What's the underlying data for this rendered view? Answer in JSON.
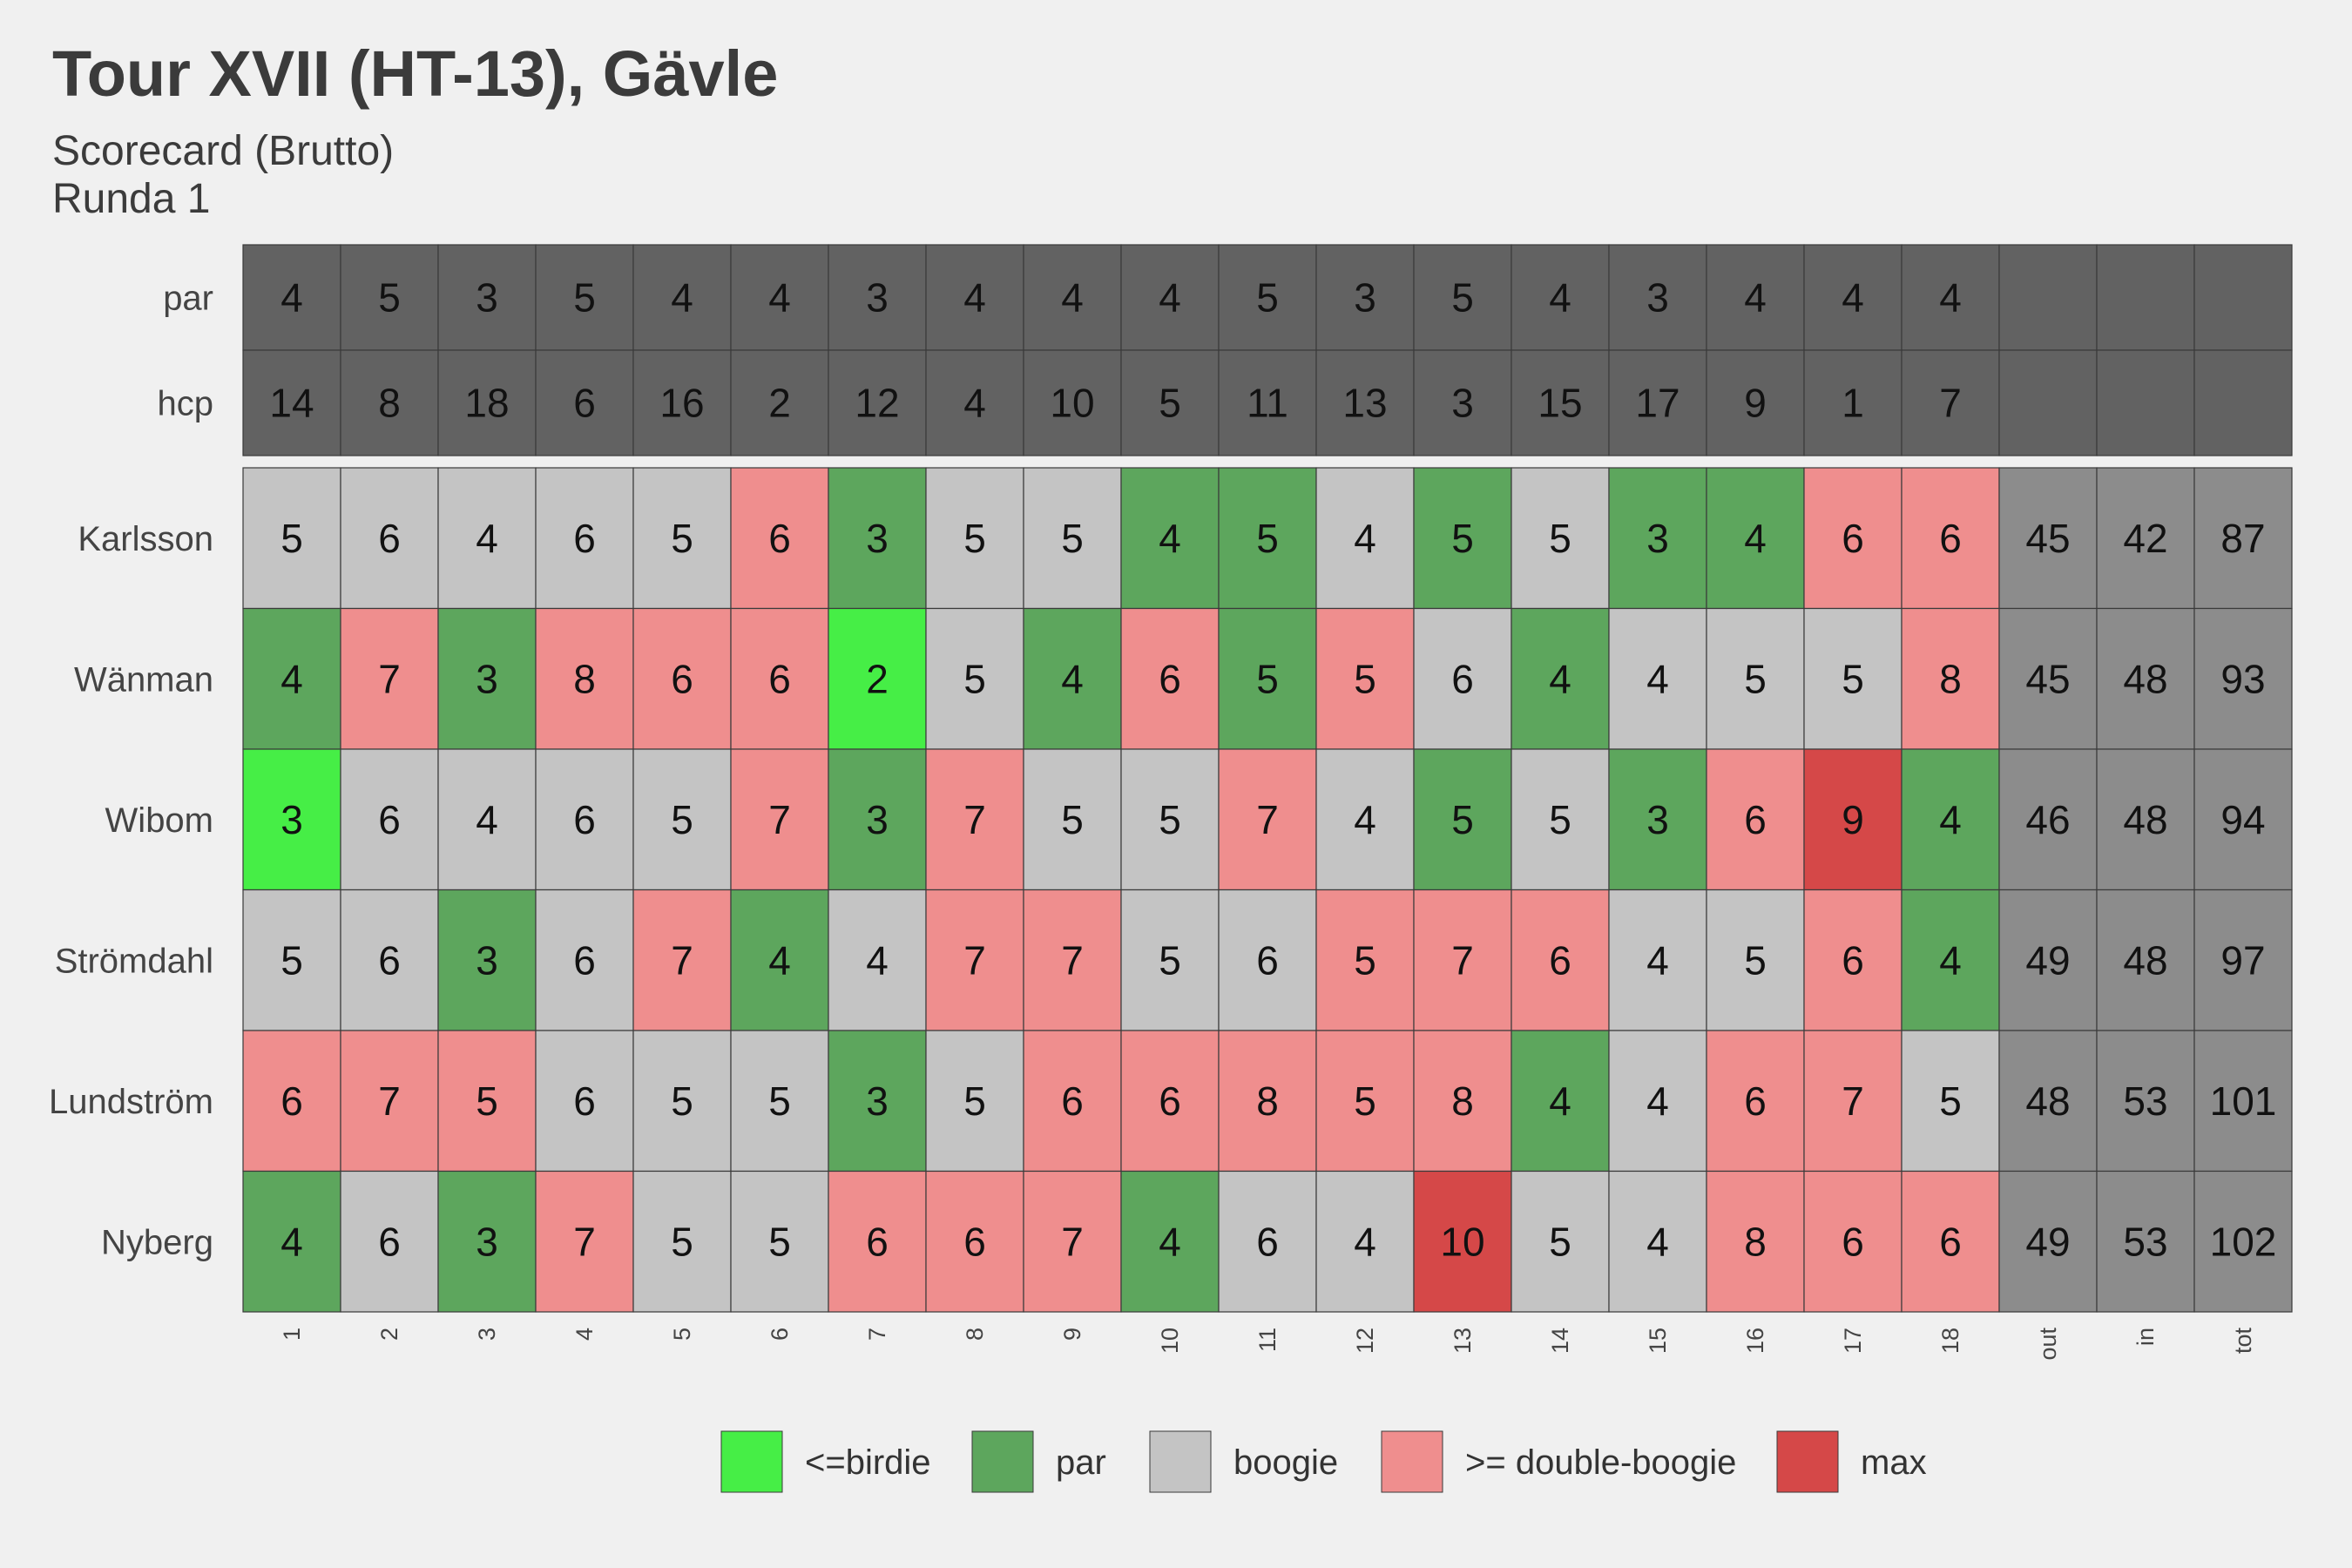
{
  "title": "Tour XVII (HT-13), Gävle",
  "subtitle": "Scorecard (Brutto)",
  "subtitle2": "Runda 1",
  "chart_data": {
    "type": "heatmap",
    "columns": [
      "1",
      "2",
      "3",
      "4",
      "5",
      "6",
      "7",
      "8",
      "9",
      "10",
      "11",
      "12",
      "13",
      "14",
      "15",
      "16",
      "17",
      "18",
      "out",
      "in",
      "tot"
    ],
    "header_rows": [
      {
        "label": "par",
        "values": [
          4,
          5,
          3,
          5,
          4,
          4,
          3,
          4,
          4,
          4,
          5,
          3,
          5,
          4,
          3,
          4,
          4,
          4
        ]
      },
      {
        "label": "hcp",
        "values": [
          14,
          8,
          18,
          6,
          16,
          2,
          12,
          4,
          10,
          5,
          11,
          13,
          3,
          15,
          17,
          9,
          1,
          7
        ]
      }
    ],
    "players": [
      {
        "name": "Karlsson",
        "scores": [
          5,
          6,
          4,
          6,
          5,
          6,
          3,
          5,
          5,
          4,
          5,
          4,
          5,
          5,
          3,
          4,
          6,
          6
        ],
        "out": 45,
        "in": 42,
        "tot": 87,
        "categories": [
          "boogie",
          "boogie",
          "boogie",
          "boogie",
          "boogie",
          "double",
          "par",
          "boogie",
          "boogie",
          "par",
          "par",
          "boogie",
          "par",
          "boogie",
          "par",
          "par",
          "double",
          "double"
        ]
      },
      {
        "name": "Wänman",
        "scores": [
          4,
          7,
          3,
          8,
          6,
          6,
          2,
          5,
          4,
          6,
          5,
          5,
          6,
          4,
          4,
          5,
          5,
          8
        ],
        "out": 45,
        "in": 48,
        "tot": 93,
        "categories": [
          "par",
          "double",
          "par",
          "double",
          "double",
          "double",
          "birdie",
          "boogie",
          "par",
          "double",
          "par",
          "double",
          "boogie",
          "par",
          "boogie",
          "boogie",
          "boogie",
          "double"
        ]
      },
      {
        "name": "Wibom",
        "scores": [
          3,
          6,
          4,
          6,
          5,
          7,
          3,
          7,
          5,
          5,
          7,
          4,
          5,
          5,
          3,
          6,
          9,
          4
        ],
        "out": 46,
        "in": 48,
        "tot": 94,
        "categories": [
          "birdie",
          "boogie",
          "boogie",
          "boogie",
          "boogie",
          "double",
          "par",
          "double",
          "boogie",
          "boogie",
          "double",
          "boogie",
          "par",
          "boogie",
          "par",
          "double",
          "max",
          "par"
        ]
      },
      {
        "name": "Strömdahl",
        "scores": [
          5,
          6,
          3,
          6,
          7,
          4,
          4,
          7,
          7,
          5,
          6,
          5,
          7,
          6,
          4,
          5,
          6,
          4
        ],
        "out": 49,
        "in": 48,
        "tot": 97,
        "categories": [
          "boogie",
          "boogie",
          "par",
          "boogie",
          "double",
          "par",
          "boogie",
          "double",
          "double",
          "boogie",
          "boogie",
          "double",
          "double",
          "double",
          "boogie",
          "boogie",
          "double",
          "par"
        ]
      },
      {
        "name": "Lundström",
        "scores": [
          6,
          7,
          5,
          6,
          5,
          5,
          3,
          5,
          6,
          6,
          8,
          5,
          8,
          4,
          4,
          6,
          7,
          5
        ],
        "out": 48,
        "in": 53,
        "tot": 101,
        "categories": [
          "double",
          "double",
          "double",
          "boogie",
          "boogie",
          "boogie",
          "par",
          "boogie",
          "double",
          "double",
          "double",
          "double",
          "double",
          "par",
          "boogie",
          "double",
          "double",
          "boogie"
        ]
      },
      {
        "name": "Nyberg",
        "scores": [
          4,
          6,
          3,
          7,
          5,
          5,
          6,
          6,
          7,
          4,
          6,
          4,
          10,
          5,
          4,
          8,
          6,
          6
        ],
        "out": 49,
        "in": 53,
        "tot": 102,
        "categories": [
          "par",
          "boogie",
          "par",
          "double",
          "boogie",
          "boogie",
          "double",
          "double",
          "double",
          "par",
          "boogie",
          "boogie",
          "max",
          "boogie",
          "boogie",
          "double",
          "double",
          "double"
        ]
      }
    ],
    "legend": [
      {
        "key": "birdie",
        "label": "<=birdie",
        "color": "#46ee46"
      },
      {
        "key": "par",
        "label": "par",
        "color": "#5da65d"
      },
      {
        "key": "boogie",
        "label": "boogie",
        "color": "#c4c4c4"
      },
      {
        "key": "double",
        "label": ">= double-boogie",
        "color": "#ef8e8e"
      },
      {
        "key": "max",
        "label": "max",
        "color": "#d54848"
      }
    ],
    "legend_position": "bottom",
    "colors": {
      "header_fill": "#626262",
      "totals_fill": "#8c8c8c",
      "background": "#f0f0f0"
    }
  }
}
